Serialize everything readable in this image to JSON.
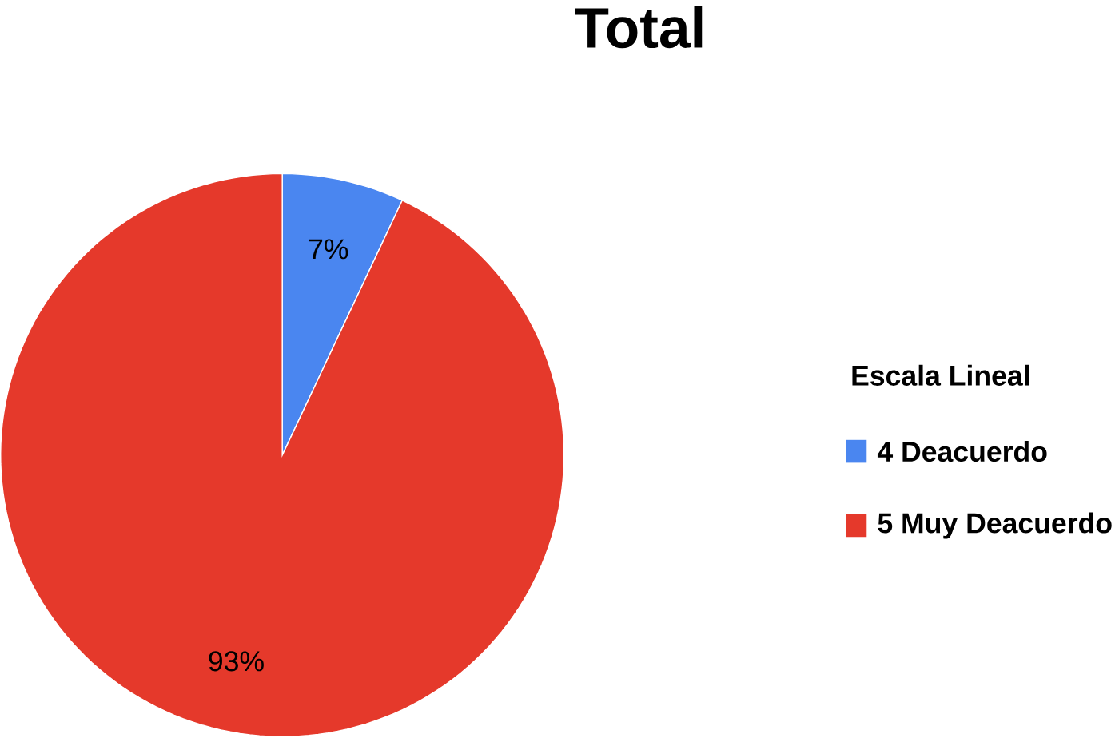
{
  "chart_data": {
    "type": "pie",
    "title": "Total",
    "legend_title": "Escala Lineal",
    "categories": [
      "4 Deacuerdo",
      "5 Muy Deacuerdo"
    ],
    "values": [
      7,
      93
    ],
    "value_labels": [
      "7%",
      "93%"
    ],
    "colors": [
      "#4a86f0",
      "#e5392b"
    ],
    "legend": "right"
  }
}
